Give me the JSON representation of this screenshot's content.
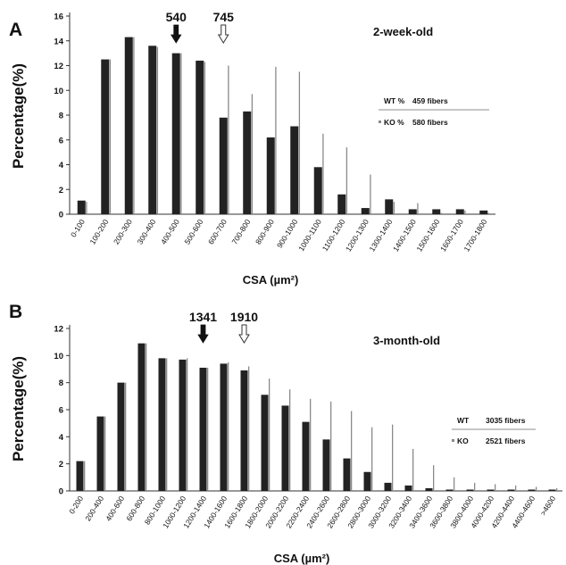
{
  "colors": {
    "wt": "#222222",
    "ko": "#8a8a8a",
    "axis": "#333333"
  },
  "chart_data": [
    {
      "type": "bar",
      "panel": "A",
      "title": "2-week-old",
      "xlabel": "CSA (µm²)",
      "ylabel": "Percentage(%)",
      "ylim": [
        0,
        16
      ],
      "yticks": [
        0,
        2,
        4,
        6,
        8,
        10,
        12,
        14,
        16
      ],
      "categories": [
        "0-100",
        "100-200",
        "200-300",
        "300-400",
        "400-500",
        "500-600",
        "600-700",
        "700-800",
        "800-900",
        "900-1000",
        "1000-1100",
        "1100-1200",
        "1200-1300",
        "1300-1400",
        "1400-1500",
        "1500-1600",
        "1600-1700",
        "1700-1800"
      ],
      "series": [
        {
          "name": "KO %",
          "values": [
            1.0,
            12.5,
            14.3,
            13.5,
            13.0,
            12.3,
            12.0,
            9.7,
            11.9,
            11.5,
            6.5,
            5.4,
            3.2,
            1.0,
            0.9,
            0.1,
            0.3,
            0.1
          ]
        },
        {
          "name": "WT %",
          "values": [
            1.1,
            12.5,
            14.3,
            13.6,
            13.0,
            12.4,
            7.8,
            8.3,
            6.2,
            7.1,
            3.8,
            1.6,
            0.5,
            1.2,
            0.4,
            0.4,
            0.4,
            0.3
          ]
        }
      ],
      "legend": {
        "placement": "right",
        "entries": [
          {
            "label": "WT %",
            "detail": "459 fibers"
          },
          {
            "label": "KO %",
            "detail": "580 fibers"
          }
        ]
      },
      "markers": [
        {
          "label": "540",
          "category_index": 4,
          "style": "filled"
        },
        {
          "label": "745",
          "category_index": 6,
          "style": "open"
        }
      ]
    },
    {
      "type": "bar",
      "panel": "B",
      "title": "3-month-old",
      "xlabel": "CSA (µm²)",
      "ylabel": "Percentage(%)",
      "ylim": [
        0,
        12
      ],
      "yticks": [
        0,
        2,
        4,
        6,
        8,
        10,
        12
      ],
      "categories": [
        "0-200",
        "200-400",
        "400-600",
        "600-800",
        "800-1000",
        "1000-1200",
        "1200-1400",
        "1400-1600",
        "1600-1800",
        "1800-2000",
        "2000-2200",
        "2200-2400",
        "2400-2600",
        "2600-2800",
        "2800-3000",
        "3000-3200",
        "3200-3400",
        "3400-3600",
        "3600-3800",
        "3800-4000",
        "4000-4200",
        "4200-4400",
        "4400-4600",
        ">4600"
      ],
      "series": [
        {
          "name": "KO",
          "values": [
            2.2,
            5.5,
            8.0,
            10.9,
            9.8,
            9.8,
            9.1,
            9.5,
            9.2,
            8.3,
            7.5,
            6.8,
            6.6,
            5.9,
            4.7,
            4.9,
            3.1,
            1.9,
            1.0,
            0.6,
            0.5,
            0.4,
            0.3,
            0.2
          ]
        },
        {
          "name": "WT",
          "values": [
            2.2,
            5.5,
            8.0,
            10.9,
            9.8,
            9.7,
            9.1,
            9.4,
            8.9,
            7.1,
            6.3,
            5.1,
            3.8,
            2.4,
            1.4,
            0.6,
            0.4,
            0.2,
            0.1,
            0.1,
            0.1,
            0.1,
            0.1,
            0.1
          ]
        }
      ],
      "legend": {
        "placement": "right",
        "entries": [
          {
            "label": "WT",
            "detail": "3035 fibers"
          },
          {
            "label": "KO",
            "detail": "2521 fibers"
          }
        ]
      },
      "markers": [
        {
          "label": "1341",
          "category_index": 6,
          "style": "filled"
        },
        {
          "label": "1910",
          "category_index": 8,
          "style": "open"
        }
      ]
    }
  ]
}
